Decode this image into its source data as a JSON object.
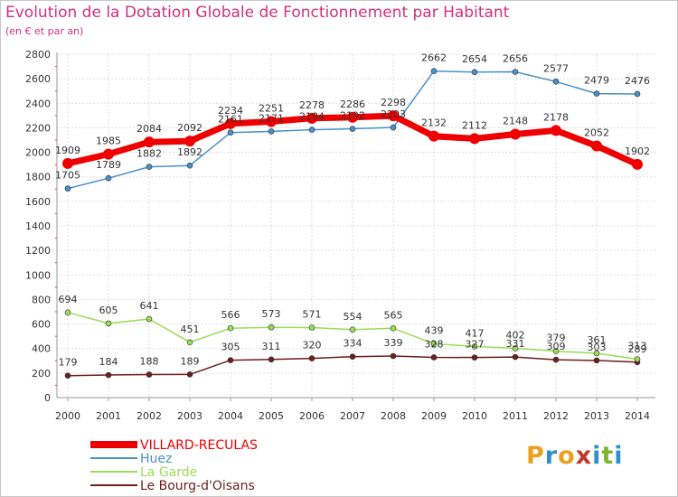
{
  "header": {
    "title": "Evolution de la Dotation Globale de Fonctionnement par Habitant",
    "subtitle": "(en € et par an)"
  },
  "logo": {
    "text": "Proxiti",
    "colors": [
      "#e8a020",
      "#2f8fcf",
      "#e8a020",
      "#c0392b",
      "#2f8fcf",
      "#7bb62d",
      "#2f8fcf"
    ]
  },
  "chart_data": {
    "type": "line",
    "title": "Evolution de la Dotation Globale de Fonctionnement par Habitant",
    "subtitle": "(en € et par an)",
    "x": [
      2000,
      2001,
      2002,
      2003,
      2004,
      2005,
      2006,
      2007,
      2008,
      2009,
      2010,
      2011,
      2012,
      2013,
      2014
    ],
    "ylim": [
      0,
      2800
    ],
    "yticks": [
      0,
      200,
      400,
      600,
      800,
      1000,
      1200,
      1400,
      1600,
      1800,
      2000,
      2200,
      2400,
      2600,
      2800
    ],
    "grid": true,
    "legend_position": "bottom-left",
    "series": [
      {
        "name": "Le Bourg-d'Oisans",
        "color": "#6b1f1f",
        "values": [
          179,
          184,
          188,
          189,
          305,
          311,
          320,
          334,
          339,
          328,
          327,
          331,
          309,
          303,
          289
        ]
      },
      {
        "name": "La Garde",
        "color": "#99dd55",
        "values": [
          694,
          605,
          641,
          451,
          566,
          573,
          571,
          554,
          565,
          439,
          417,
          402,
          379,
          361,
          313
        ]
      },
      {
        "name": "Huez",
        "color": "#4a90c8",
        "values": [
          1705,
          1789,
          1882,
          1892,
          2161,
          2171,
          2184,
          2192,
          2203,
          2662,
          2654,
          2656,
          2577,
          2479,
          2476
        ]
      },
      {
        "name": "VILLARD-RECULAS",
        "color": "#ee0000",
        "values": [
          1909,
          1985,
          2084,
          2092,
          2234,
          2251,
          2278,
          2286,
          2298,
          2132,
          2112,
          2148,
          2178,
          2052,
          1902
        ]
      }
    ]
  }
}
